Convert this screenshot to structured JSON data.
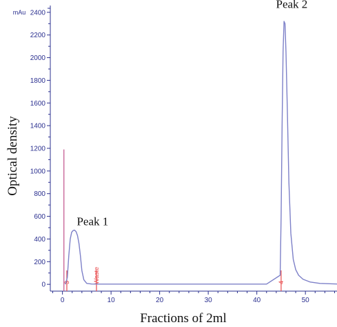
{
  "chart_data": {
    "type": "line",
    "xlabel": "Fractions of 2ml",
    "ylabel": "Optical density",
    "y_unit": "mAu",
    "xlim": [
      -2.5,
      56.5
    ],
    "ylim": [
      -60,
      2460
    ],
    "x_ticks": [
      0,
      10,
      20,
      30,
      40,
      50
    ],
    "x_minor_step": 2,
    "y_ticks": [
      0,
      200,
      400,
      600,
      800,
      1000,
      1200,
      1400,
      1600,
      1800,
      2000,
      2200,
      2400
    ],
    "y_minor_step": 100,
    "grid": false,
    "series": [
      {
        "color": "#7d80c8",
        "x": [
          0.6,
          1.0,
          1.3,
          1.6,
          1.9,
          2.2,
          2.5,
          2.8,
          3.1,
          3.4,
          3.7,
          4.0,
          4.4,
          5.0,
          6.0,
          8.0,
          15,
          25,
          35,
          42,
          44.8,
          45.0,
          45.2,
          45.4,
          45.6,
          45.8,
          46.0,
          46.3,
          46.6,
          47.0,
          47.5,
          48.0,
          48.6,
          49.5,
          51,
          53,
          56.5
        ],
        "y": [
          0,
          60,
          250,
          400,
          460,
          475,
          478,
          465,
          430,
          360,
          250,
          120,
          40,
          8,
          3,
          2,
          2,
          2,
          2,
          2,
          80,
          600,
          1400,
          2050,
          2320,
          2300,
          2050,
          1500,
          900,
          450,
          220,
          130,
          80,
          45,
          20,
          8,
          3
        ]
      }
    ],
    "markers": [
      {
        "x": 0.3,
        "y_top": 1190,
        "color": "#c0508a",
        "label": ""
      },
      {
        "x": 0.9,
        "y_top": 0,
        "color": "#e8484a",
        "label": "3"
      },
      {
        "x": 7.0,
        "y_top": 0,
        "color": "#e8484a",
        "label": "Waste"
      },
      {
        "x": 45.0,
        "y_top": 0,
        "color": "#e8484a",
        "label": "4"
      }
    ],
    "annotations": [
      {
        "text": "Peak 1",
        "x": 6.2,
        "y": 520
      },
      {
        "text": "Peak 2",
        "x": 47.2,
        "y": 2440
      }
    ]
  }
}
